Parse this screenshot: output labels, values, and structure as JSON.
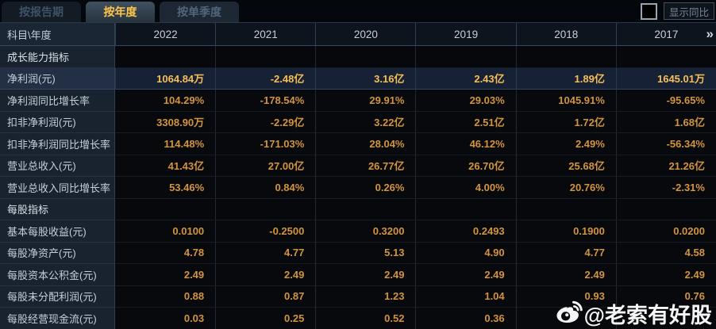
{
  "tabs": [
    {
      "label": "按报告期",
      "active": false
    },
    {
      "label": "按年度",
      "active": true
    },
    {
      "label": "按单季度",
      "active": false
    }
  ],
  "controls": {
    "yoy_checkbox_checked": false,
    "show_yoy_label": "显示同比"
  },
  "table": {
    "corner_label": "科目\\年度",
    "years": [
      "2022",
      "2021",
      "2020",
      "2019",
      "2018",
      "2017"
    ],
    "more_icon": "»",
    "rows": [
      {
        "type": "section",
        "label": "成长能力指标"
      },
      {
        "type": "data",
        "label": "净利润(元)",
        "highlight": true,
        "values": [
          "1064.84万",
          "-2.48亿",
          "3.16亿",
          "2.43亿",
          "1.89亿",
          "1645.01万"
        ]
      },
      {
        "type": "data",
        "label": "净利润同比增长率",
        "values": [
          "104.29%",
          "-178.54%",
          "29.91%",
          "29.03%",
          "1045.91%",
          "-95.65%"
        ]
      },
      {
        "type": "data",
        "label": "扣非净利润(元)",
        "values": [
          "3308.90万",
          "-2.29亿",
          "3.22亿",
          "2.51亿",
          "1.72亿",
          "1.68亿"
        ]
      },
      {
        "type": "data",
        "label": "扣非净利润同比增长率",
        "values": [
          "114.48%",
          "-171.03%",
          "28.04%",
          "46.12%",
          "2.49%",
          "-56.34%"
        ]
      },
      {
        "type": "data",
        "label": "营业总收入(元)",
        "values": [
          "41.43亿",
          "27.00亿",
          "26.77亿",
          "26.70亿",
          "25.68亿",
          "21.26亿"
        ]
      },
      {
        "type": "data",
        "label": "营业总收入同比增长率",
        "values": [
          "53.46%",
          "0.84%",
          "0.26%",
          "4.00%",
          "20.76%",
          "-2.31%"
        ]
      },
      {
        "type": "section",
        "label": "每股指标"
      },
      {
        "type": "data",
        "label": "基本每股收益(元)",
        "values": [
          "0.0100",
          "-0.2500",
          "0.3200",
          "0.2493",
          "0.1900",
          "0.0200"
        ]
      },
      {
        "type": "data",
        "label": "每股净资产(元)",
        "values": [
          "4.78",
          "4.77",
          "5.13",
          "4.90",
          "4.77",
          "4.58"
        ]
      },
      {
        "type": "data",
        "label": "每股资本公积金(元)",
        "values": [
          "2.49",
          "2.49",
          "2.49",
          "2.49",
          "2.49",
          "2.49"
        ]
      },
      {
        "type": "data",
        "label": "每股未分配利润(元)",
        "values": [
          "0.88",
          "0.87",
          "1.23",
          "1.04",
          "0.93",
          "0.76"
        ]
      },
      {
        "type": "data",
        "label": "每股经营现金流(元)",
        "values": [
          "0.03",
          "0.25",
          "0.52",
          "0.36",
          "",
          ""
        ]
      }
    ]
  },
  "watermark": {
    "icon": "weibo-icon",
    "text": "@老索有好股"
  },
  "colors": {
    "tab_active_text": "#ffc64a",
    "value_text": "#d2943e",
    "highlight_value_text": "#f6bf55",
    "label_text": "#c6cfd8",
    "label_bg": "#19232f",
    "highlight_row_bg": "#172136",
    "page_bg": "#04070b"
  }
}
